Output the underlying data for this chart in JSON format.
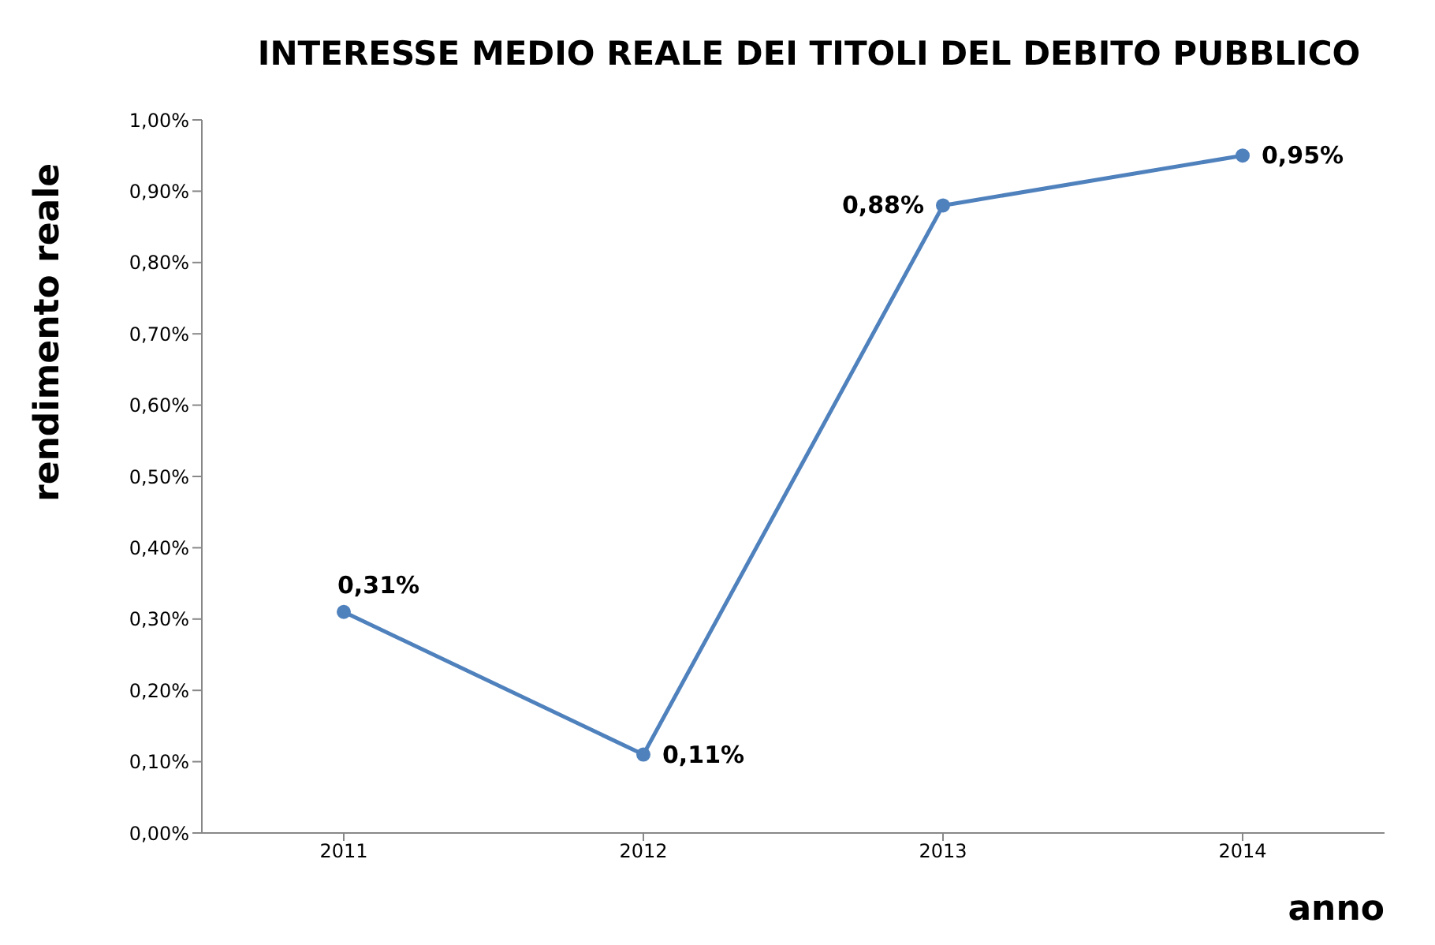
{
  "chart_data": {
    "type": "line",
    "title": "INTERESSE MEDIO REALE DEI TITOLI DEL DEBITO PUBBLICO",
    "xlabel": "anno",
    "ylabel": "rendimento reale",
    "categories": [
      "2011",
      "2012",
      "2013",
      "2014"
    ],
    "series": [
      {
        "color": "#4f81bd",
        "values": [
          0.31,
          0.11,
          0.88,
          0.95
        ],
        "value_labels": [
          "0,31%",
          "0,11%",
          "0,88%",
          "0,95%"
        ]
      }
    ],
    "ylim": [
      0,
      1
    ],
    "yticks": [
      {
        "value": 0,
        "label": "0,00%"
      },
      {
        "value": 0.1,
        "label": "0,10%"
      },
      {
        "value": 0.2,
        "label": "0,20%"
      },
      {
        "value": 0.3,
        "label": "0,30%"
      },
      {
        "value": 0.4,
        "label": "0,40%"
      },
      {
        "value": 0.5,
        "label": "0,50%"
      },
      {
        "value": 0.6,
        "label": "0,60%"
      },
      {
        "value": 0.7,
        "label": "0,70%"
      },
      {
        "value": 0.8,
        "label": "0,80%"
      },
      {
        "value": 0.9,
        "label": "0,90%"
      },
      {
        "value": 1,
        "label": "1,00%"
      }
    ],
    "grid": false,
    "legend": false,
    "marker": "circle",
    "line_style": "solid"
  }
}
